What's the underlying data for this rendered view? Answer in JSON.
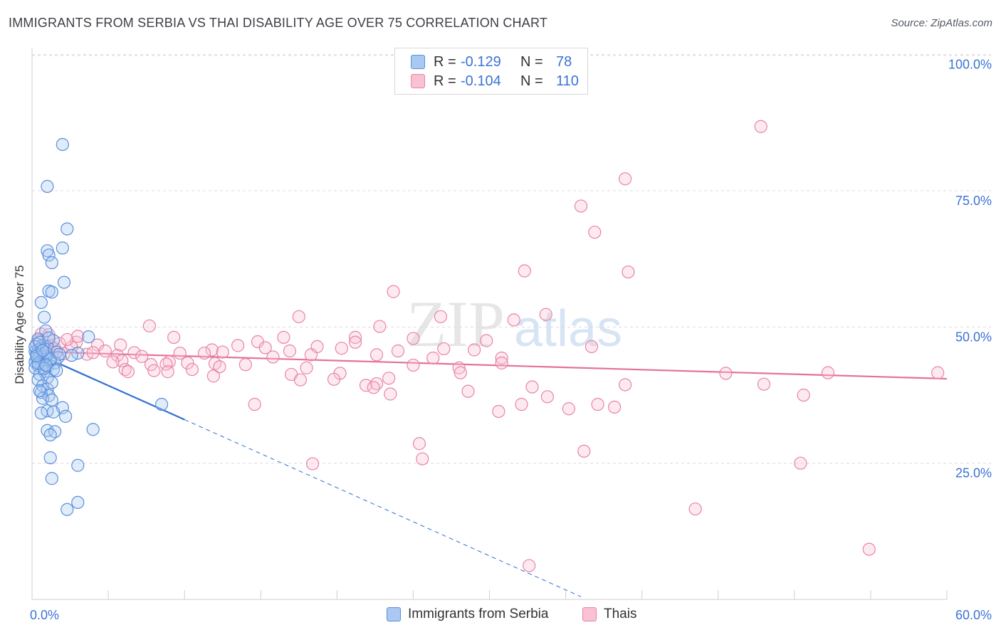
{
  "title": "IMMIGRANTS FROM SERBIA VS THAI DISABILITY AGE OVER 75 CORRELATION CHART",
  "source": "Source: ZipAtlas.com",
  "watermark": {
    "zip": "ZIP",
    "atlas": "atlas"
  },
  "legend": {
    "r_label": "R =",
    "n_label": "N =",
    "rows": [
      {
        "r": "-0.129",
        "n": "78",
        "color": "#a9c8f2",
        "border": "#5a8fdc"
      },
      {
        "r": "-0.104",
        "n": "110",
        "color": "#f9c2d3",
        "border": "#e884a5"
      }
    ]
  },
  "bottom_legend": [
    {
      "label": "Immigrants from Serbia",
      "color": "#a9c8f2",
      "border": "#5a8fdc"
    },
    {
      "label": "Thais",
      "color": "#f9c2d3",
      "border": "#e884a5"
    }
  ],
  "chart_data": {
    "type": "scatter",
    "title": "IMMIGRANTS FROM SERBIA VS THAI DISABILITY AGE OVER 75 CORRELATION CHART",
    "xlabel": "",
    "ylabel": "Disability Age Over 75",
    "xlim": [
      0,
      60
    ],
    "ylim": [
      0,
      105
    ],
    "x_tick_labels": [
      "0.0%",
      "60.0%"
    ],
    "y_tick_labels": [
      {
        "value": 25,
        "label": "25.0%"
      },
      {
        "value": 50,
        "label": "50.0%"
      },
      {
        "value": 75,
        "label": "75.0%"
      },
      {
        "value": 100,
        "label": "100.0%"
      }
    ],
    "grid": true,
    "series": [
      {
        "name": "Immigrants from Serbia",
        "color": "#6fa3e8",
        "fill": "rgba(169,200,242,0.35)",
        "stroke": "#5a8fdc",
        "trend": {
          "x0": 0,
          "y0": 45.5,
          "x1": 10,
          "y1": 33.0,
          "dash_to_x": 36,
          "dash_to_y": 0.5,
          "color": "#2f6fd0"
        },
        "points": [
          [
            2.0,
            83.5
          ],
          [
            1.0,
            75.8
          ],
          [
            2.3,
            68.0
          ],
          [
            1.0,
            64.0
          ],
          [
            2.0,
            64.5
          ],
          [
            1.1,
            63.2
          ],
          [
            1.3,
            61.8
          ],
          [
            2.1,
            58.2
          ],
          [
            1.1,
            56.6
          ],
          [
            1.3,
            56.4
          ],
          [
            0.6,
            54.5
          ],
          [
            0.8,
            51.8
          ],
          [
            3.7,
            48.2
          ],
          [
            0.9,
            49.3
          ],
          [
            0.4,
            47.8
          ],
          [
            1.4,
            47.5
          ],
          [
            0.3,
            46.9
          ],
          [
            0.7,
            46.6
          ],
          [
            1.0,
            46.3
          ],
          [
            0.4,
            45.8
          ],
          [
            0.2,
            45.5
          ],
          [
            1.6,
            45.4
          ],
          [
            3.0,
            45.2
          ],
          [
            0.5,
            44.9
          ],
          [
            0.9,
            44.6
          ],
          [
            1.7,
            44.4
          ],
          [
            0.3,
            44.2
          ],
          [
            0.7,
            44.0
          ],
          [
            1.2,
            43.8
          ],
          [
            0.2,
            43.6
          ],
          [
            1.5,
            43.4
          ],
          [
            0.6,
            43.1
          ],
          [
            0.4,
            42.9
          ],
          [
            1.0,
            42.7
          ],
          [
            0.2,
            42.5
          ],
          [
            1.4,
            42.2
          ],
          [
            0.8,
            41.8
          ],
          [
            0.5,
            41.3
          ],
          [
            1.0,
            40.7
          ],
          [
            0.4,
            40.3
          ],
          [
            0.7,
            39.2
          ],
          [
            1.0,
            38.6
          ],
          [
            0.6,
            38.0
          ],
          [
            1.1,
            37.4
          ],
          [
            0.7,
            36.9
          ],
          [
            1.3,
            36.6
          ],
          [
            8.5,
            35.8
          ],
          [
            2.0,
            35.2
          ],
          [
            1.0,
            34.6
          ],
          [
            1.4,
            34.4
          ],
          [
            0.6,
            34.2
          ],
          [
            2.2,
            33.6
          ],
          [
            4.0,
            31.2
          ],
          [
            1.0,
            31.0
          ],
          [
            1.5,
            30.8
          ],
          [
            1.2,
            30.2
          ],
          [
            1.2,
            26.0
          ],
          [
            3.0,
            24.6
          ],
          [
            1.3,
            22.2
          ],
          [
            3.0,
            17.8
          ],
          [
            2.3,
            16.5
          ],
          [
            0.3,
            45.1
          ],
          [
            0.6,
            46.0
          ],
          [
            0.9,
            45.3
          ],
          [
            1.2,
            44.1
          ],
          [
            0.4,
            43.3
          ],
          [
            0.8,
            42.4
          ],
          [
            1.6,
            42.0
          ],
          [
            0.2,
            46.4
          ],
          [
            0.5,
            47.2
          ],
          [
            1.1,
            48.0
          ],
          [
            0.3,
            44.7
          ],
          [
            0.7,
            45.7
          ],
          [
            2.6,
            44.8
          ],
          [
            0.9,
            43.0
          ],
          [
            1.3,
            39.8
          ],
          [
            0.5,
            38.3
          ],
          [
            1.8,
            45.0
          ]
        ]
      },
      {
        "name": "Thais",
        "color": "#f19ab7",
        "fill": "rgba(249,194,211,0.35)",
        "stroke": "#e884a5",
        "trend": {
          "x0": 0,
          "y0": 45.5,
          "x1": 60,
          "y1": 40.5,
          "color": "#e5709a"
        },
        "points": [
          [
            47.8,
            86.8
          ],
          [
            38.9,
            77.2
          ],
          [
            36.0,
            72.2
          ],
          [
            36.9,
            67.4
          ],
          [
            32.3,
            60.3
          ],
          [
            39.1,
            60.1
          ],
          [
            23.7,
            56.5
          ],
          [
            17.5,
            51.9
          ],
          [
            26.8,
            51.9
          ],
          [
            31.6,
            51.3
          ],
          [
            33.7,
            52.3
          ],
          [
            7.7,
            50.2
          ],
          [
            22.8,
            50.1
          ],
          [
            0.6,
            48.7
          ],
          [
            1.1,
            48.6
          ],
          [
            9.3,
            48.1
          ],
          [
            16.5,
            48.1
          ],
          [
            21.2,
            48.1
          ],
          [
            25.0,
            47.9
          ],
          [
            14.8,
            47.3
          ],
          [
            2.9,
            47.2
          ],
          [
            1.8,
            47.0
          ],
          [
            21.2,
            47.2
          ],
          [
            18.7,
            46.4
          ],
          [
            29.8,
            47.5
          ],
          [
            1.2,
            46.6
          ],
          [
            4.3,
            46.7
          ],
          [
            0.8,
            46.5
          ],
          [
            13.5,
            46.6
          ],
          [
            15.3,
            46.2
          ],
          [
            2.6,
            46.3
          ],
          [
            1.5,
            46.0
          ],
          [
            20.3,
            46.1
          ],
          [
            27.0,
            46.0
          ],
          [
            36.7,
            46.4
          ],
          [
            11.8,
            45.8
          ],
          [
            12.5,
            45.4
          ],
          [
            16.9,
            45.6
          ],
          [
            24.0,
            45.6
          ],
          [
            29.0,
            45.8
          ],
          [
            4.8,
            45.6
          ],
          [
            6.7,
            45.3
          ],
          [
            9.7,
            45.2
          ],
          [
            11.3,
            45.2
          ],
          [
            3.6,
            45.0
          ],
          [
            2.1,
            45.1
          ],
          [
            18.3,
            44.9
          ],
          [
            22.6,
            44.9
          ],
          [
            15.8,
            44.5
          ],
          [
            26.3,
            44.3
          ],
          [
            30.8,
            44.3
          ],
          [
            5.6,
            44.8
          ],
          [
            4.0,
            45.3
          ],
          [
            9.0,
            43.6
          ],
          [
            10.2,
            43.4
          ],
          [
            12.0,
            43.3
          ],
          [
            8.8,
            43.2
          ],
          [
            14.0,
            43.1
          ],
          [
            5.9,
            43.8
          ],
          [
            5.3,
            43.6
          ],
          [
            7.8,
            43.1
          ],
          [
            12.3,
            42.7
          ],
          [
            10.5,
            42.2
          ],
          [
            18.0,
            42.5
          ],
          [
            25.0,
            43.0
          ],
          [
            28.0,
            42.5
          ],
          [
            30.8,
            43.4
          ],
          [
            6.1,
            42.2
          ],
          [
            6.3,
            41.8
          ],
          [
            8.0,
            42.0
          ],
          [
            8.9,
            41.8
          ],
          [
            11.9,
            41.0
          ],
          [
            17.0,
            41.3
          ],
          [
            20.2,
            41.5
          ],
          [
            28.1,
            41.6
          ],
          [
            45.5,
            41.5
          ],
          [
            52.2,
            41.6
          ],
          [
            59.4,
            41.6
          ],
          [
            23.4,
            40.6
          ],
          [
            19.8,
            40.4
          ],
          [
            17.6,
            40.3
          ],
          [
            21.9,
            39.3
          ],
          [
            22.6,
            39.6
          ],
          [
            32.8,
            39.0
          ],
          [
            38.9,
            39.4
          ],
          [
            48.0,
            39.5
          ],
          [
            22.4,
            38.9
          ],
          [
            28.6,
            38.2
          ],
          [
            23.5,
            37.7
          ],
          [
            33.8,
            37.2
          ],
          [
            50.6,
            37.5
          ],
          [
            32.1,
            35.8
          ],
          [
            37.1,
            35.8
          ],
          [
            14.6,
            35.8
          ],
          [
            35.2,
            35.0
          ],
          [
            38.2,
            35.3
          ],
          [
            30.6,
            34.5
          ],
          [
            25.4,
            28.6
          ],
          [
            25.6,
            25.8
          ],
          [
            18.4,
            24.9
          ],
          [
            50.4,
            25.0
          ],
          [
            36.2,
            27.2
          ],
          [
            43.5,
            16.6
          ],
          [
            54.9,
            9.2
          ],
          [
            32.6,
            6.2
          ],
          [
            0.4,
            47.5
          ],
          [
            2.3,
            47.7
          ],
          [
            3.0,
            48.3
          ],
          [
            5.8,
            46.7
          ],
          [
            7.2,
            44.6
          ]
        ]
      }
    ]
  }
}
